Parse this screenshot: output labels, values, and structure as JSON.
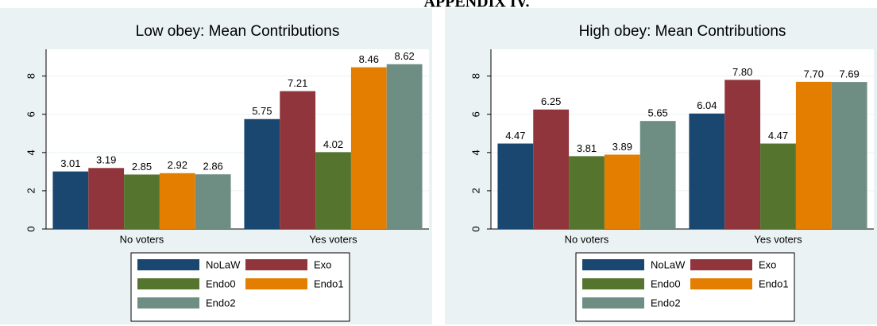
{
  "heading": "APPENDIX IV.",
  "chart_data": [
    {
      "type": "bar",
      "title": "Low obey: Mean Contributions",
      "categories": [
        "No voters",
        "Yes voters"
      ],
      "series": [
        {
          "name": "NoLaW",
          "color": "#1a476f",
          "values": [
            3.01,
            5.75
          ],
          "value_labels": [
            "3.01",
            "5.75"
          ]
        },
        {
          "name": "Exo",
          "color": "#90353b",
          "values": [
            3.19,
            7.21
          ],
          "value_labels": [
            "3.19",
            "7.21"
          ]
        },
        {
          "name": "Endo0",
          "color": "#55752f",
          "values": [
            2.85,
            4.02
          ],
          "value_labels": [
            "2.85",
            "4.02"
          ]
        },
        {
          "name": "Endo1",
          "color": "#e37e00",
          "values": [
            2.92,
            8.46
          ],
          "value_labels": [
            "2.92",
            "8.46"
          ]
        },
        {
          "name": "Endo2",
          "color": "#6e8e84",
          "values": [
            2.86,
            8.62
          ],
          "value_labels": [
            "2.86",
            "8.62"
          ]
        }
      ],
      "ylim": [
        0,
        9.4
      ],
      "yticks": [
        0,
        2,
        4,
        6,
        8
      ],
      "grid": true,
      "legend": "bottom"
    },
    {
      "type": "bar",
      "title": "High obey: Mean Contributions",
      "categories": [
        "No voters",
        "Yes voters"
      ],
      "series": [
        {
          "name": "NoLaW",
          "color": "#1a476f",
          "values": [
            4.47,
            6.04
          ],
          "value_labels": [
            "4.47",
            "6.04"
          ]
        },
        {
          "name": "Exo",
          "color": "#90353b",
          "values": [
            6.25,
            7.8
          ],
          "value_labels": [
            "6.25",
            "7.80"
          ]
        },
        {
          "name": "Endo0",
          "color": "#55752f",
          "values": [
            3.81,
            4.47
          ],
          "value_labels": [
            "3.81",
            "4.47"
          ]
        },
        {
          "name": "Endo1",
          "color": "#e37e00",
          "values": [
            3.89,
            7.7
          ],
          "value_labels": [
            "3.89",
            "7.70"
          ]
        },
        {
          "name": "Endo2",
          "color": "#6e8e84",
          "values": [
            5.65,
            7.69
          ],
          "value_labels": [
            "5.65",
            "7.69"
          ]
        }
      ],
      "ylim": [
        0,
        9.4
      ],
      "yticks": [
        0,
        2,
        4,
        6,
        8
      ],
      "grid": true,
      "legend": "bottom"
    }
  ]
}
